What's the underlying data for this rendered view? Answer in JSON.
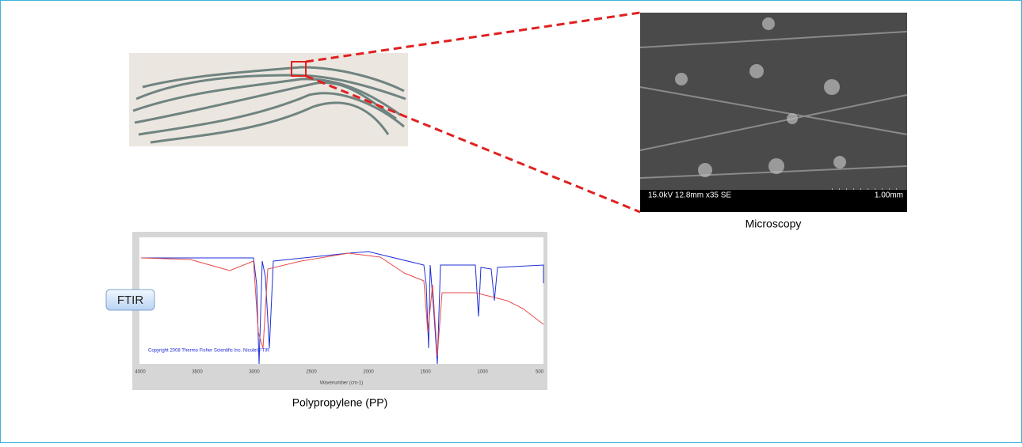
{
  "microscopy": {
    "caption": "Microscopy",
    "sem_info": "15.0kV 12.8mm x35 SE",
    "scale_label": "1.00mm"
  },
  "ftir": {
    "button": "FTIR",
    "copyright": "Copyright 2008 Thermo Fisher Scientific Inc. Nicolet FTIR",
    "x_axis_label": "Wavenumber (cm-1)",
    "x_tick_labels": [
      "4000",
      "3500",
      "3000",
      "2500",
      "2000",
      "1500",
      "1000",
      "500"
    ],
    "caption": "Polypropylene (PP)"
  }
}
